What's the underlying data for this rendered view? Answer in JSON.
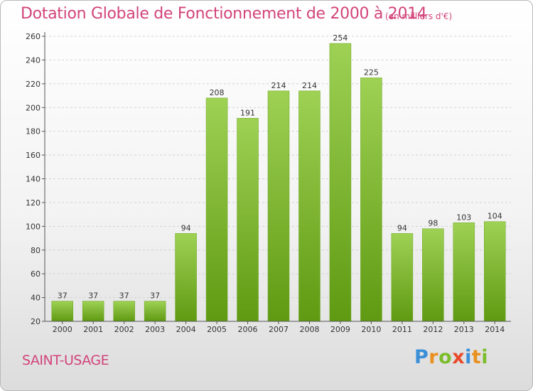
{
  "chart_data": {
    "type": "bar",
    "title": "Dotation Globale de Fonctionnement de 2000 à 2014",
    "subtitle": "(en milliers d'€)",
    "categories": [
      "2000",
      "2001",
      "2002",
      "2003",
      "2004",
      "2005",
      "2006",
      "2007",
      "2008",
      "2009",
      "2010",
      "2011",
      "2012",
      "2013",
      "2014"
    ],
    "values": [
      37,
      37,
      37,
      37,
      94,
      208,
      191,
      214,
      214,
      254,
      225,
      94,
      98,
      103,
      104
    ],
    "xlabel": "",
    "ylabel": "",
    "ylim": [
      20,
      260
    ],
    "yticks": [
      20,
      40,
      60,
      80,
      100,
      120,
      140,
      160,
      180,
      200,
      220,
      240,
      260
    ],
    "grid": true,
    "colors": {
      "bar_top": "#9ed154",
      "bar_bottom": "#5f9a12",
      "text_accent": "#d2447a"
    }
  },
  "footer": {
    "commune": "SAINT-USAGE",
    "brand": "Proxiti",
    "brand_colors": [
      "#3a8fd8",
      "#e9901e",
      "#7bbd2c",
      "#e84a2a",
      "#3a8fd8",
      "#e9901e",
      "#7bbd2c"
    ]
  }
}
